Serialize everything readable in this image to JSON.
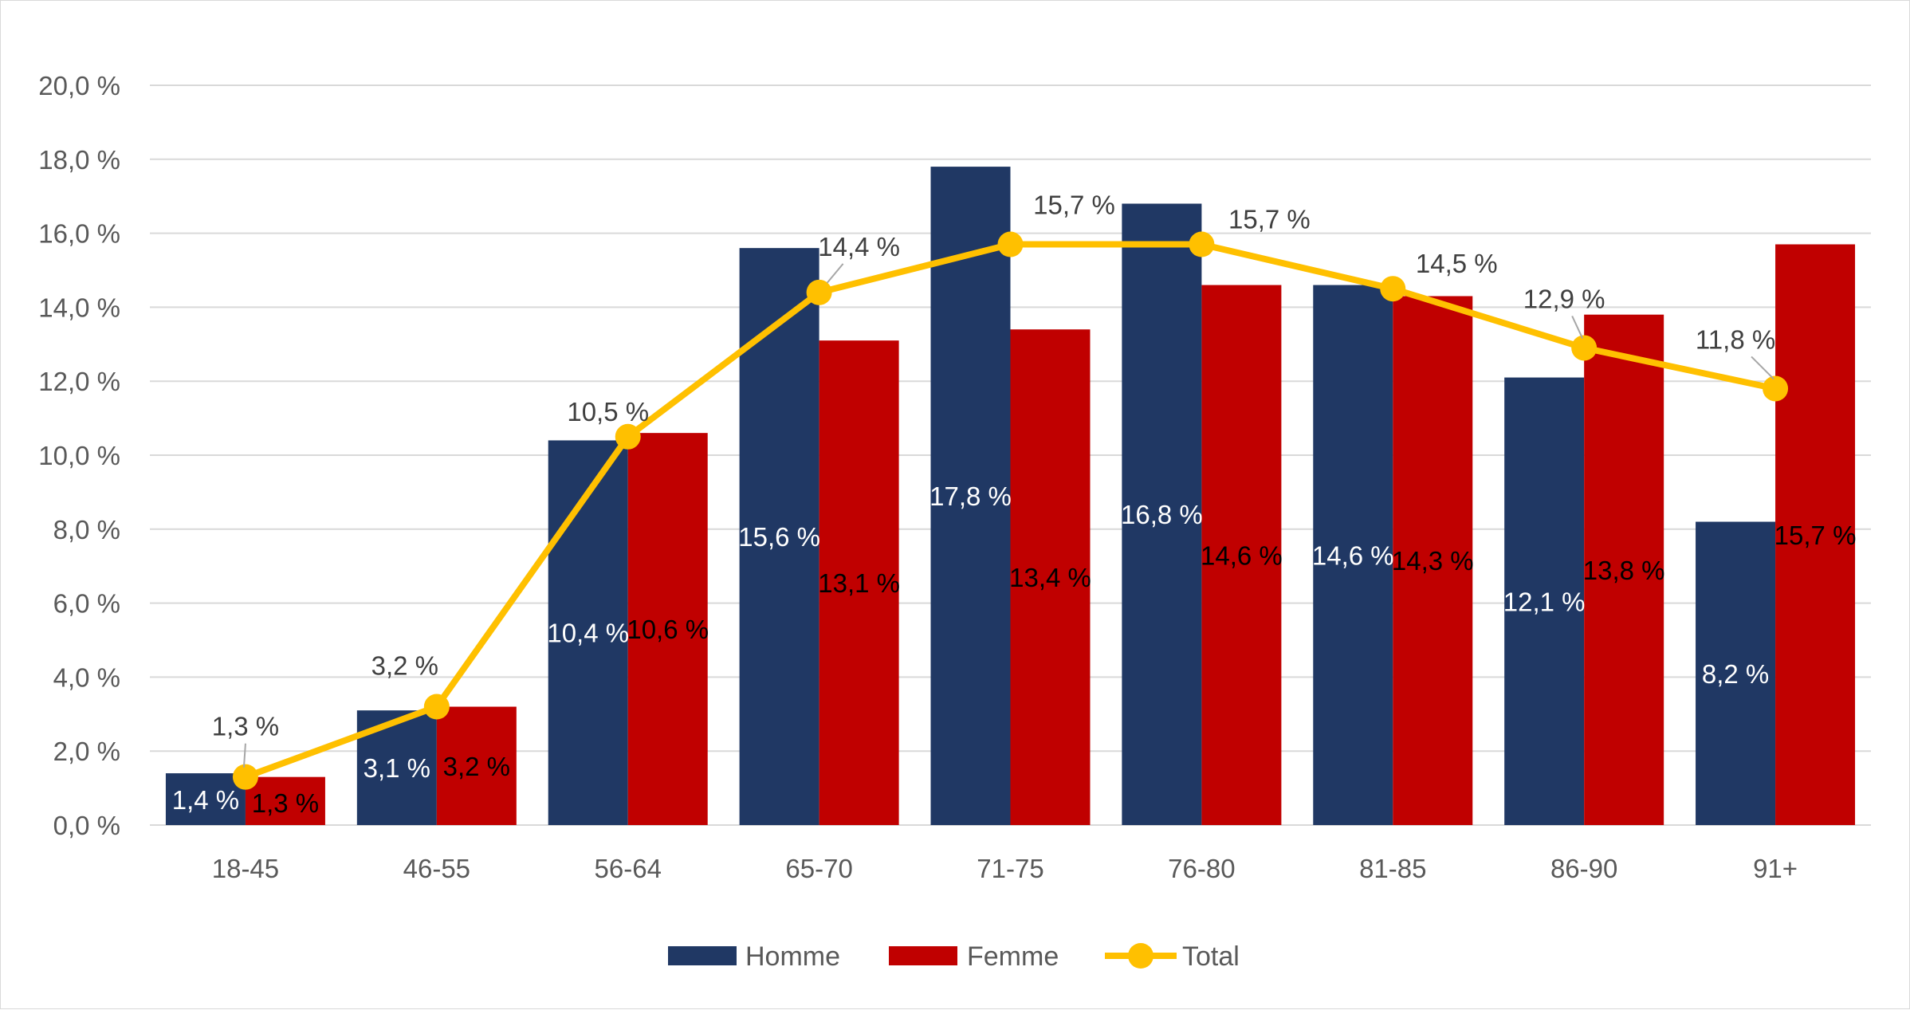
{
  "colors": {
    "homme": "#203864",
    "femme": "#C00000",
    "total": "#FFC000",
    "grid": "#d9d9d9",
    "axis_text": "#595959"
  },
  "chart_data": {
    "type": "bar",
    "categories": [
      "18-45",
      "46-55",
      "56-64",
      "65-70",
      "71-75",
      "76-80",
      "81-85",
      "86-90",
      "91+"
    ],
    "series": [
      {
        "name": "Homme",
        "kind": "bar",
        "values": [
          1.4,
          3.1,
          10.4,
          15.6,
          17.8,
          16.8,
          14.6,
          12.1,
          8.2
        ],
        "labels": [
          "1,4 %",
          "3,1 %",
          "10,4 %",
          "15,6 %",
          "17,8 %",
          "16,8 %",
          "14,6 %",
          "12,1 %",
          "8,2 %"
        ]
      },
      {
        "name": "Femme",
        "kind": "bar",
        "values": [
          1.3,
          3.2,
          10.6,
          13.1,
          13.4,
          14.6,
          14.3,
          13.8,
          15.7
        ],
        "labels": [
          "1,3 %",
          "3,2 %",
          "10,6 %",
          "13,1 %",
          "13,4 %",
          "14,6 %",
          "14,3 %",
          "13,8 %",
          "15,7 %"
        ]
      },
      {
        "name": "Total",
        "kind": "line",
        "values": [
          1.3,
          3.2,
          10.5,
          14.4,
          15.7,
          15.7,
          14.5,
          12.9,
          11.8
        ],
        "labels": [
          "1,3 %",
          "3,2 %",
          "10,5 %",
          "14,4 %",
          "15,7 %",
          "15,7 %",
          "14,5 %",
          "12,9 %",
          "11,8 %"
        ]
      }
    ],
    "yticks": [
      "0,0 %",
      "2,0 %",
      "4,0 %",
      "6,0 %",
      "8,0 %",
      "10,0 %",
      "12,0 %",
      "14,0 %",
      "16,0 %",
      "18,0 %",
      "20,0 %"
    ],
    "ylim": [
      0,
      20
    ],
    "title": "",
    "xlabel": "",
    "ylabel": "",
    "grid": true,
    "legend": "bottom-center"
  }
}
